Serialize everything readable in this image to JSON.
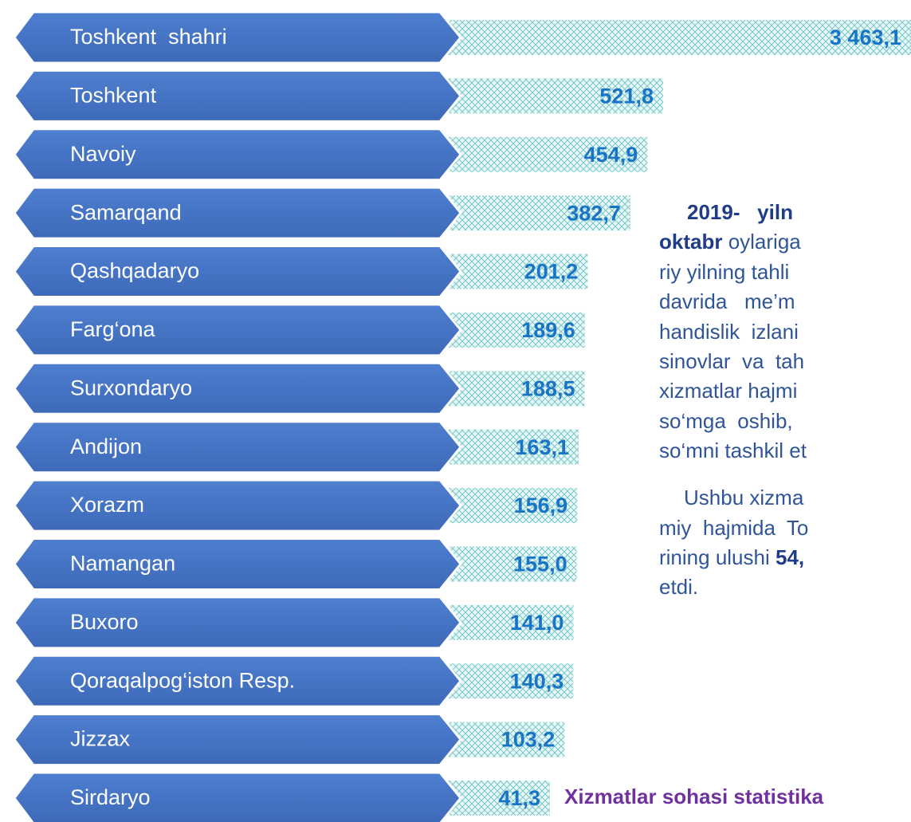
{
  "chart_data": {
    "type": "bar",
    "categories": [
      "Toshkent  shahri",
      "Toshkent",
      "Navoiy",
      "Samarqand",
      "Qashqadaryo",
      "Farg‘ona",
      "Surxondaryo",
      "Andijon",
      "Xorazm",
      "Namangan",
      "Buxoro",
      "Qoraqalpog‘iston Resp.",
      "Jizzax",
      "Sirdaryo"
    ],
    "values": [
      3463.1,
      521.8,
      454.9,
      382.7,
      201.2,
      189.6,
      188.5,
      163.1,
      156.9,
      155.0,
      141.0,
      140.3,
      103.2,
      41.3
    ],
    "value_labels": [
      "3 463,1",
      "521,8",
      "454,9",
      "382,7",
      "201,2",
      "189,6",
      "188,5",
      "163,1",
      "156,9",
      "155,0",
      "141,0",
      "140,3",
      "103,2",
      "41,3"
    ],
    "color": "#4472c4"
  },
  "text_block": {
    "lines": [
      {
        "bold": "2019-   yiln"
      },
      {
        "bold": "oktabr",
        "text": " oylariga"
      },
      {
        "text": "riy yilning tahli"
      },
      {
        "text": "davrida   me’m"
      },
      {
        "text": "handislik  izlani"
      },
      {
        "text": "sinovlar  va  tah"
      },
      {
        "text": "xizmatlar hajmi"
      },
      {
        "text": "so‘mga  oshib,"
      },
      {
        "text": "so‘mni tashkil et"
      },
      {
        "text": "Ushbu xizma"
      },
      {
        "text": "miy  hajmida  To"
      },
      {
        "text": "rining ulushi ",
        "bold": "54,"
      },
      {
        "text": "etdi."
      }
    ]
  },
  "footer": "Xizmatlar sohasi statistika"
}
